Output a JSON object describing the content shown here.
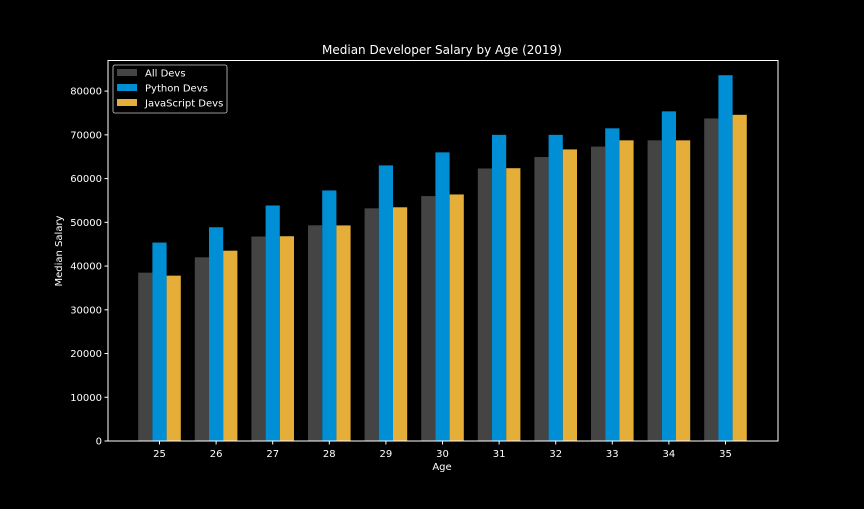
{
  "chart_data": {
    "type": "bar",
    "title": "Median Developer Salary by Age (2019)",
    "xlabel": "Age",
    "ylabel": "Median Salary",
    "categories": [
      "25",
      "26",
      "27",
      "28",
      "29",
      "30",
      "31",
      "32",
      "33",
      "34",
      "35"
    ],
    "series": [
      {
        "name": "All Devs",
        "color": "#444444",
        "values": [
          38496,
          42000,
          46752,
          49320,
          53200,
          56000,
          62316,
          64928,
          67317,
          68748,
          73752
        ]
      },
      {
        "name": "Python Devs",
        "color": "#008fd5",
        "values": [
          45372,
          48876,
          53850,
          57287,
          63016,
          65998,
          70003,
          70000,
          71496,
          75370,
          83640
        ]
      },
      {
        "name": "JavaScript Devs",
        "color": "#e5ae38",
        "values": [
          37810,
          43515,
          46823,
          49293,
          53437,
          56373,
          62375,
          66674,
          68745,
          68746,
          74583
        ]
      }
    ],
    "ylim": [
      0,
      87000
    ],
    "yticks": [
      "0",
      "10000",
      "20000",
      "30000",
      "40000",
      "50000",
      "60000",
      "70000",
      "80000"
    ],
    "grid": false,
    "legend_position": "top-left",
    "background": "#000000",
    "foreground": "#ffffff"
  }
}
